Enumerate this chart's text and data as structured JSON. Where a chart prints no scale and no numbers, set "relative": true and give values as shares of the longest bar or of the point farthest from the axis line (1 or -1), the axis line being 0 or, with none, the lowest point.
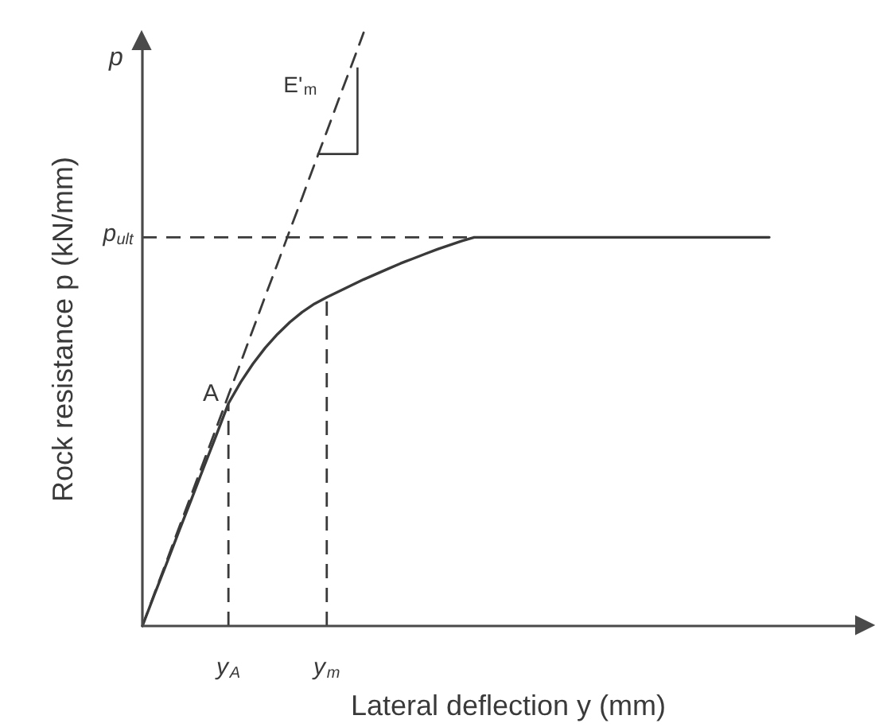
{
  "chart_data": {
    "type": "line",
    "relative": true,
    "xlabel": "Lateral deflection y (mm)",
    "ylabel": "Rock resistance p (kN/mm)",
    "categories": [
      null,
      null,
      null,
      null,
      null,
      null,
      null,
      "y$_{A}$",
      null,
      null,
      null,
      null,
      null,
      null,
      null,
      "y$_{m}$",
      null,
      null,
      null,
      null,
      null,
      null,
      null,
      null,
      null,
      null,
      null,
      null,
      null,
      null,
      null,
      null,
      null,
      null,
      null,
      null,
      null,
      null,
      null,
      null,
      null,
      null,
      null,
      null,
      null,
      null,
      null,
      null,
      null,
      null,
      null,
      null
    ],
    "series": [
      {
        "color": "#3a3a3a",
        "line_style": "solid",
        "values": [
          0,
          0.054,
          0.107,
          0.161,
          0.214,
          0.268,
          0.321,
          0.375,
          0.411,
          0.442,
          0.469,
          0.492,
          0.512,
          0.529,
          0.543,
          0.554,
          0.564,
          0.574,
          0.584,
          0.593,
          0.602,
          0.611,
          0.619,
          0.627,
          0.635,
          0.642,
          0.649,
          0.655,
          0.655,
          0.655,
          0.655,
          0.655,
          0.655,
          0.655,
          0.655,
          0.655,
          0.655,
          0.655,
          0.655,
          0.655,
          0.655,
          0.655,
          0.655,
          0.655,
          0.655,
          0.655,
          0.655,
          0.655,
          0.655,
          0.655,
          0.655,
          0.655
        ]
      },
      {
        "name": "E'$_{m}$",
        "color": "#3a3a3a",
        "line_style": "dashed",
        "values": [
          0,
          0.056,
          0.111,
          0.167,
          0.222,
          0.278,
          0.333,
          0.389,
          0.444,
          0.5,
          0.556,
          0.611,
          0.667,
          0.722,
          0.778,
          0.833,
          0.889,
          0.944,
          1.0,
          null,
          null,
          null,
          null,
          null,
          null,
          null,
          null,
          null,
          null,
          null,
          null,
          null,
          null,
          null,
          null,
          null,
          null,
          null,
          null,
          null,
          null,
          null,
          null,
          null,
          null,
          null,
          null,
          null,
          null,
          null,
          null,
          null
        ]
      }
    ],
    "ref_lines": [
      {
        "axis": "y",
        "value": 0.655,
        "label": "p$_{ult}$",
        "color": "#3a3a3a",
        "line_style": "dashed"
      },
      {
        "axis": "x",
        "value": "y$_{A}$",
        "color": "#3a3a3a",
        "line_style": "dashed"
      },
      {
        "axis": "x",
        "value": "y$_{m}$",
        "color": "#3a3a3a",
        "line_style": "dashed"
      }
    ],
    "annotations": [
      "p",
      {
        "text": "A",
        "x": "y$_{A}$",
        "y": 0.375
      }
    ]
  }
}
